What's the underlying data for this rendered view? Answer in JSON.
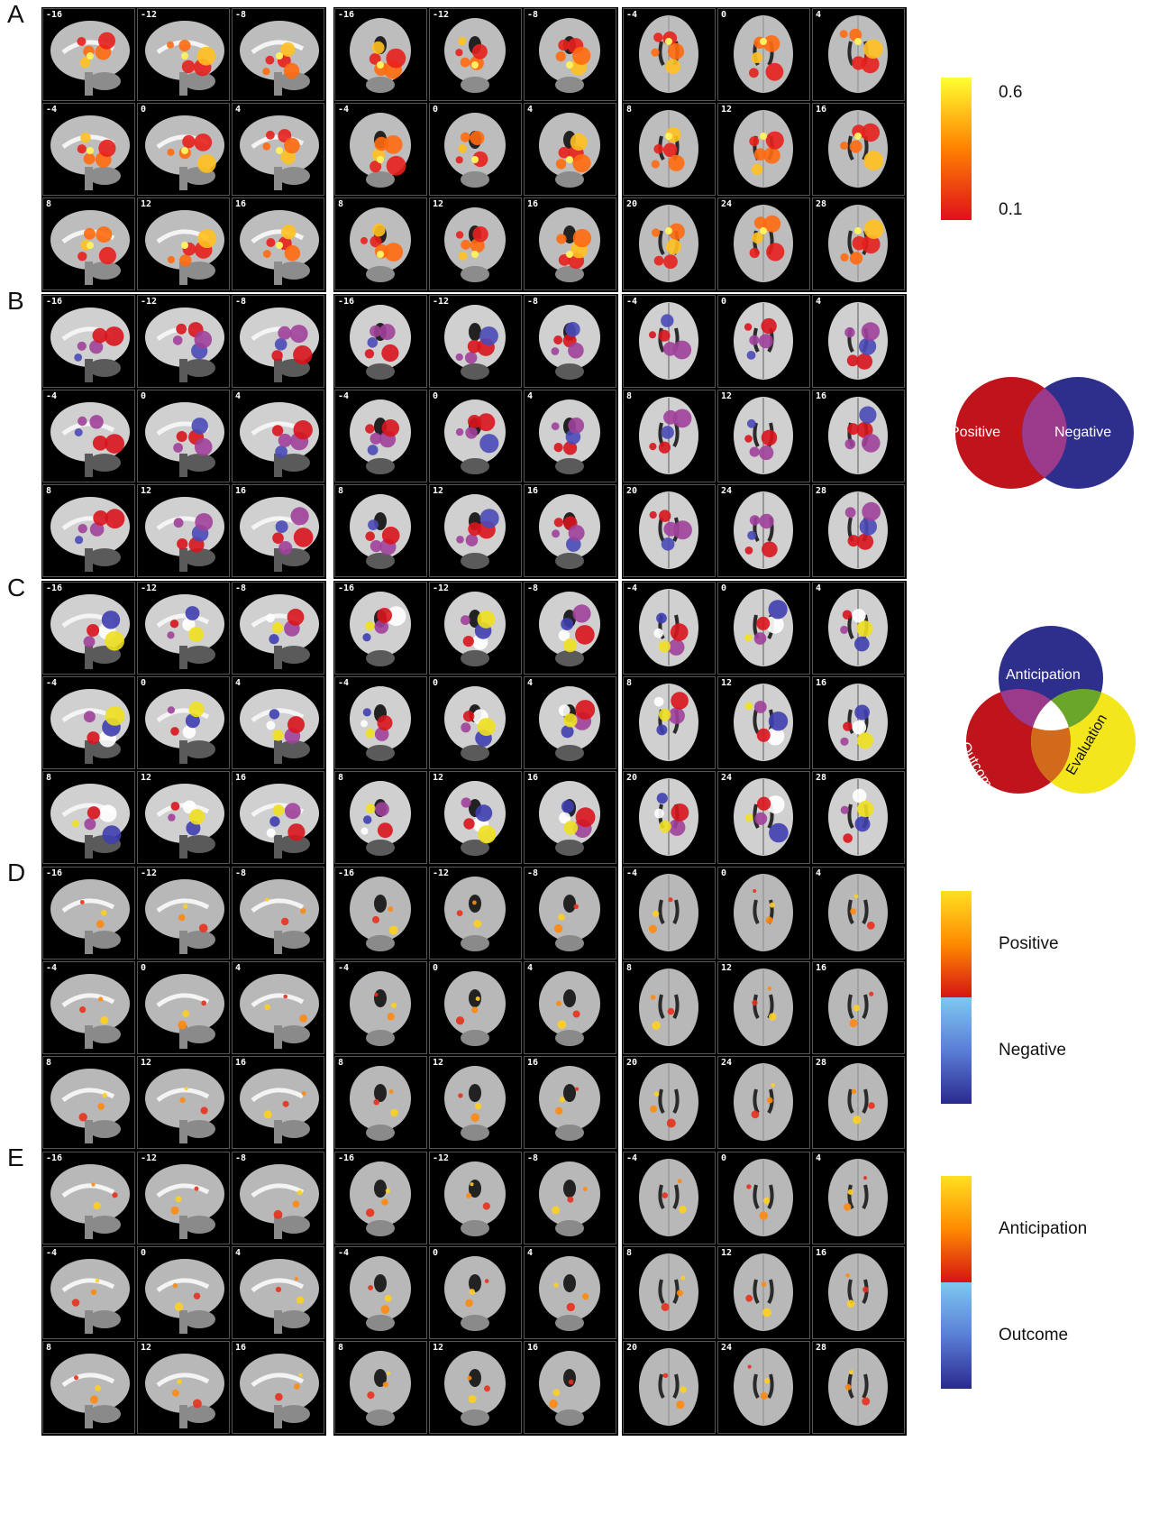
{
  "panels": [
    {
      "letter": "A",
      "style": "hot",
      "legend_type": "scale",
      "legend": {
        "high": "0.6",
        "low": "0.1",
        "colors": [
          "#ffff30",
          "#ff8000",
          "#e0101c"
        ]
      }
    },
    {
      "letter": "B",
      "style": "pn",
      "legend_type": "venn2",
      "legend": {
        "left": "Positive",
        "right": "Negative",
        "colors": [
          "#c0141c",
          "#2e2e8c",
          "#9b3a8a"
        ]
      }
    },
    {
      "letter": "C",
      "style": "aoe",
      "legend_type": "venn3",
      "legend": {
        "top": "Anticipation",
        "left": "Outcome",
        "right": "Evaluation",
        "colors": [
          "#2e2e8c",
          "#c0141c",
          "#f3e61a",
          "#9b3a8a",
          "#6aa62a",
          "#d26a1c",
          "#ffffff"
        ]
      }
    },
    {
      "letter": "D",
      "style": "diff",
      "legend_type": "diverging",
      "legend": {
        "top": "Positive",
        "bottom": "Negative",
        "colors": [
          "#ffe020",
          "#ff8a00",
          "#d61414",
          "#7ec8f0",
          "#5a7ed6",
          "#2a2a8c"
        ]
      }
    },
    {
      "letter": "E",
      "style": "diff",
      "legend_type": "diverging",
      "legend": {
        "top": "Anticipation",
        "bottom": "Outcome",
        "colors": [
          "#ffe020",
          "#ff8a00",
          "#d61414",
          "#7ec8f0",
          "#5a7ed6",
          "#2a2a8c"
        ]
      }
    }
  ],
  "slice_labels": {
    "sagittal": [
      "-16",
      "-12",
      "-8",
      "-4",
      "0",
      "4",
      "8",
      "12",
      "16"
    ],
    "coronal": [
      "-16",
      "-12",
      "-8",
      "-4",
      "0",
      "4",
      "8",
      "12",
      "16"
    ],
    "axial": [
      "-4",
      "0",
      "4",
      "8",
      "12",
      "16",
      "20",
      "24",
      "28"
    ]
  }
}
